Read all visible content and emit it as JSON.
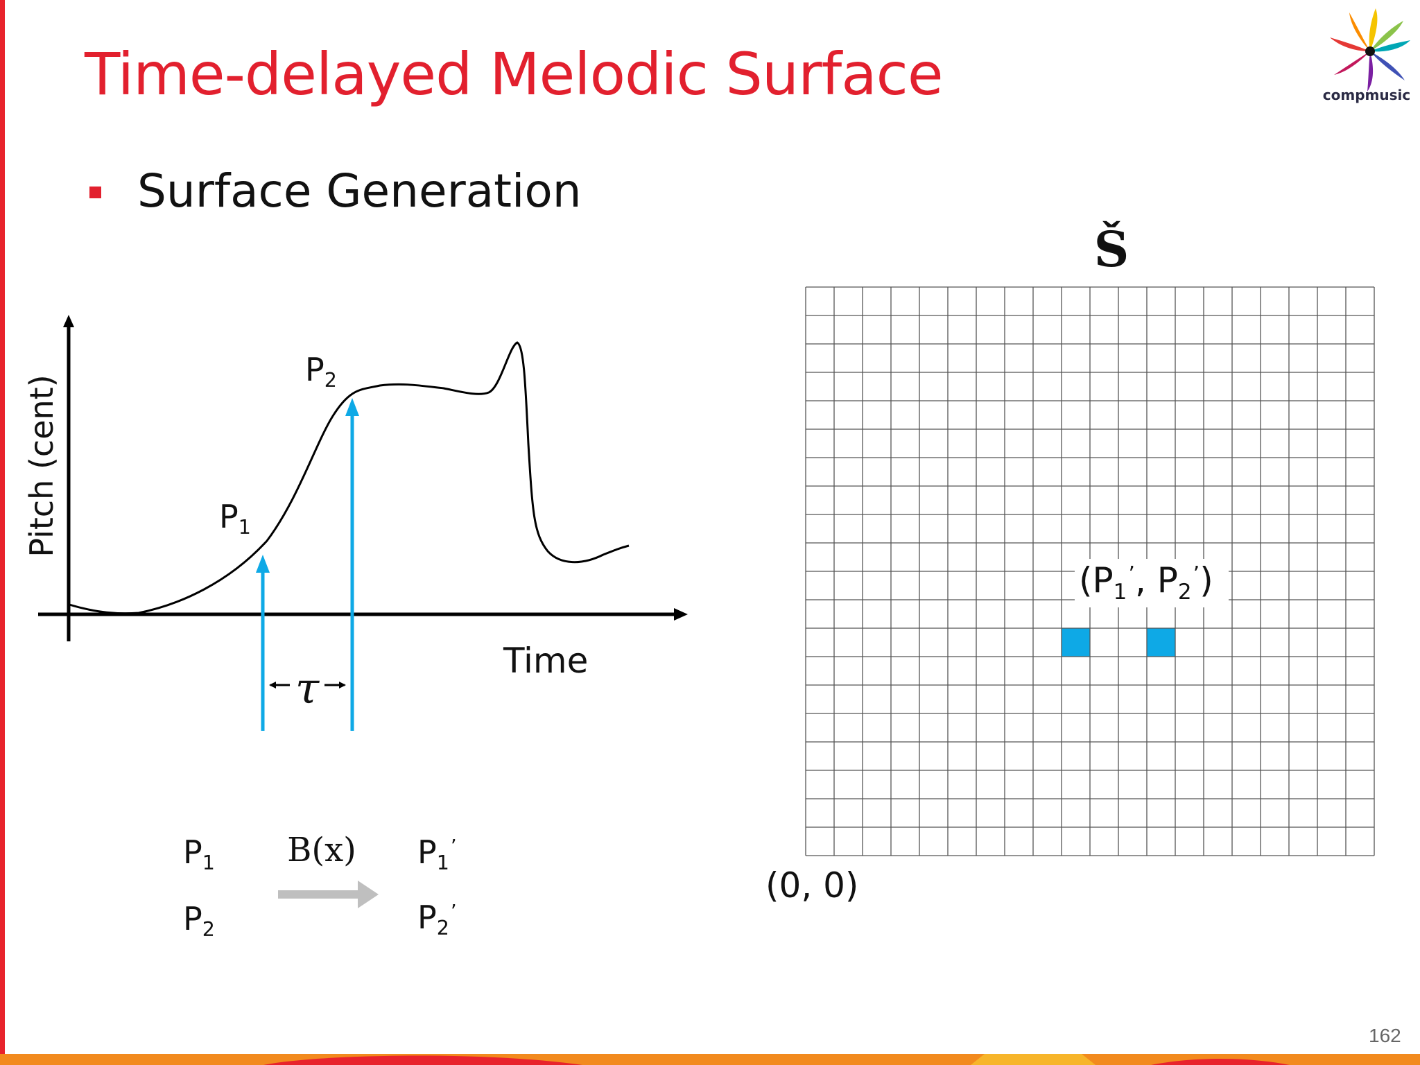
{
  "slide": {
    "title": "Time-delayed Melodic Surface",
    "bullet": "Surface Generation",
    "page_number": "162"
  },
  "logo": {
    "text": "compmusic"
  },
  "pitch_plot": {
    "y_axis_label": "Pitch (cent)",
    "x_axis_label": "Time",
    "p1_letter": "P",
    "p1_sub": "1",
    "p2_letter": "P",
    "p2_sub": "2",
    "delay_symbol": "τ"
  },
  "transform": {
    "input_1_letter": "P",
    "input_1_sub": "1",
    "input_2_letter": "P",
    "input_2_sub": "2",
    "function_label": "B(x)",
    "output_1_letter": "P",
    "output_1_sub": "1",
    "output_1_mark": "’",
    "output_2_letter": "P",
    "output_2_sub": "2",
    "output_2_mark": "’"
  },
  "surface": {
    "label": "Š",
    "origin_label": "(0, 0)",
    "grid_columns": 20,
    "grid_rows": 20,
    "highlighted_cells": [
      {
        "col": 9,
        "row": 12
      },
      {
        "col": 12,
        "row": 12
      }
    ],
    "pair_open": "(",
    "pair_p1_letter": "P",
    "pair_p1_sub": "1",
    "pair_p1_mark": "’",
    "pair_separator": ", ",
    "pair_p2_letter": "P",
    "pair_p2_sub": "2",
    "pair_p2_mark": "’",
    "pair_close": ")"
  },
  "colors": {
    "accent_red": "#e2202e",
    "highlight_blue": "#0ea9e6",
    "arrow_gray": "#bfbfbf"
  }
}
